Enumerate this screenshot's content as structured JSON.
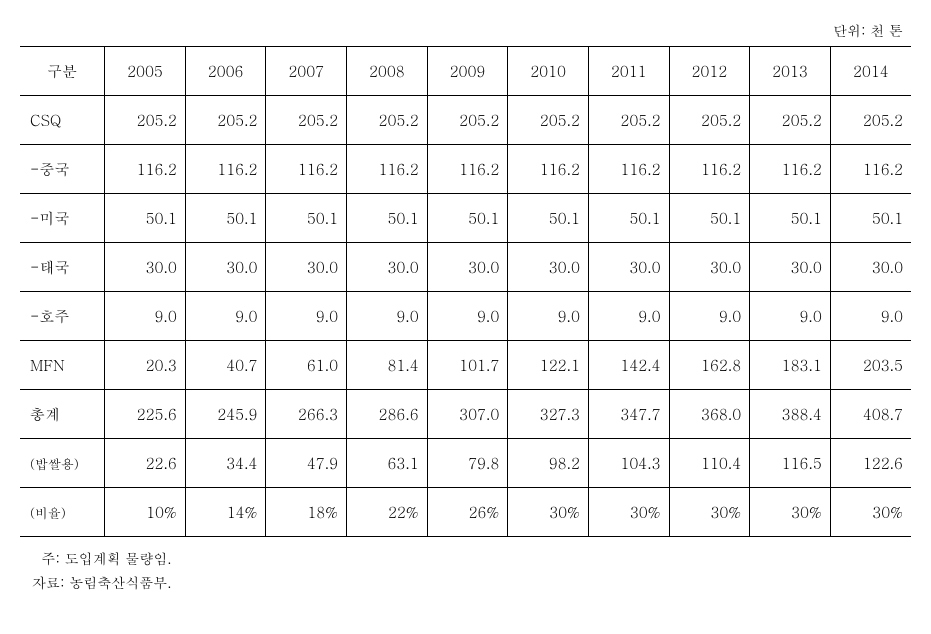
{
  "unit_label": "단위: 천 톤",
  "table": {
    "columns": [
      "구분",
      "2005",
      "2006",
      "2007",
      "2008",
      "2009",
      "2010",
      "2011",
      "2012",
      "2013",
      "2014"
    ],
    "col_widths": [
      "9.5%",
      "9.05%",
      "9.05%",
      "9.05%",
      "9.05%",
      "9.05%",
      "9.05%",
      "9.05%",
      "9.05%",
      "9.05%",
      "9.05%"
    ],
    "rows": [
      {
        "label": "CSQ",
        "cells": [
          "205.2",
          "205.2",
          "205.2",
          "205.2",
          "205.2",
          "205.2",
          "205.2",
          "205.2",
          "205.2",
          "205.2"
        ]
      },
      {
        "label": "-중국",
        "cells": [
          "116.2",
          "116.2",
          "116.2",
          "116.2",
          "116.2",
          "116.2",
          "116.2",
          "116.2",
          "116.2",
          "116.2"
        ]
      },
      {
        "label": "-미국",
        "cells": [
          "50.1",
          "50.1",
          "50.1",
          "50.1",
          "50.1",
          "50.1",
          "50.1",
          "50.1",
          "50.1",
          "50.1"
        ]
      },
      {
        "label": "-태국",
        "cells": [
          "30.0",
          "30.0",
          "30.0",
          "30.0",
          "30.0",
          "30.0",
          "30.0",
          "30.0",
          "30.0",
          "30.0"
        ]
      },
      {
        "label": "-호주",
        "cells": [
          "9.0",
          "9.0",
          "9.0",
          "9.0",
          "9.0",
          "9.0",
          "9.0",
          "9.0",
          "9.0",
          "9.0"
        ]
      },
      {
        "label": "MFN",
        "cells": [
          "20.3",
          "40.7",
          "61.0",
          "81.4",
          "101.7",
          "122.1",
          "142.4",
          "162.8",
          "183.1",
          "203.5"
        ]
      },
      {
        "label": "총계",
        "cells": [
          "225.6",
          "245.9",
          "266.3",
          "286.6",
          "307.0",
          "327.3",
          "347.7",
          "368.0",
          "388.4",
          "408.7"
        ]
      },
      {
        "label": "(밥쌀용)",
        "small": true,
        "cells": [
          "22.6",
          "34.4",
          "47.9",
          "63.1",
          "79.8",
          "98.2",
          "104.3",
          "110.4",
          "116.5",
          "122.6"
        ]
      },
      {
        "label": "(비율)",
        "small": true,
        "cells": [
          "10%",
          "14%",
          "18%",
          "22%",
          "26%",
          "30%",
          "30%",
          "30%",
          "30%",
          "30%"
        ]
      }
    ]
  },
  "notes": {
    "note1_label": "주:",
    "note1_text": "도입계획 물량임.",
    "note2_label": "자료:",
    "note2_text": "농림축산식품부."
  }
}
